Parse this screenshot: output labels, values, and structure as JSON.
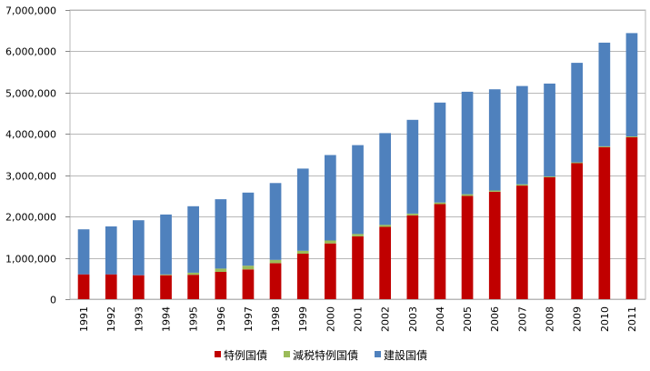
{
  "chart_data": {
    "type": "bar",
    "stacked": true,
    "categories": [
      "1991",
      "1992",
      "1993",
      "1994",
      "1995",
      "1996",
      "1997",
      "1998",
      "1999",
      "2000",
      "2001",
      "2002",
      "2003",
      "2004",
      "2005",
      "2006",
      "2007",
      "2008",
      "2009",
      "2010",
      "2011"
    ],
    "series": [
      {
        "name": "特例国債",
        "color": "#c00000",
        "values": [
          600000,
          600000,
          580000,
          580000,
          590000,
          660000,
          720000,
          870000,
          1100000,
          1350000,
          1520000,
          1750000,
          2030000,
          2300000,
          2500000,
          2600000,
          2750000,
          2950000,
          3290000,
          3680000,
          3920000
        ]
      },
      {
        "name": "減税特例国債",
        "color": "#9bbb59",
        "values": [
          0,
          0,
          0,
          20000,
          50000,
          80000,
          90000,
          80000,
          70000,
          70000,
          60000,
          50000,
          40000,
          40000,
          40000,
          30000,
          30000,
          20000,
          20000,
          20000,
          20000
        ]
      },
      {
        "name": "建設国債",
        "color": "#4f81bd",
        "values": [
          1090000,
          1160000,
          1330000,
          1450000,
          1610000,
          1680000,
          1770000,
          1860000,
          1990000,
          2070000,
          2150000,
          2220000,
          2270000,
          2420000,
          2480000,
          2450000,
          2380000,
          2250000,
          2410000,
          2510000,
          2500000
        ]
      }
    ],
    "yticks": [
      "0",
      "1,000,000",
      "2,000,000",
      "3,000,000",
      "4,000,000",
      "5,000,000",
      "6,000,000",
      "7,000,000"
    ],
    "ylim": [
      0,
      7000000
    ],
    "grid": true,
    "legend_position": "bottom"
  }
}
